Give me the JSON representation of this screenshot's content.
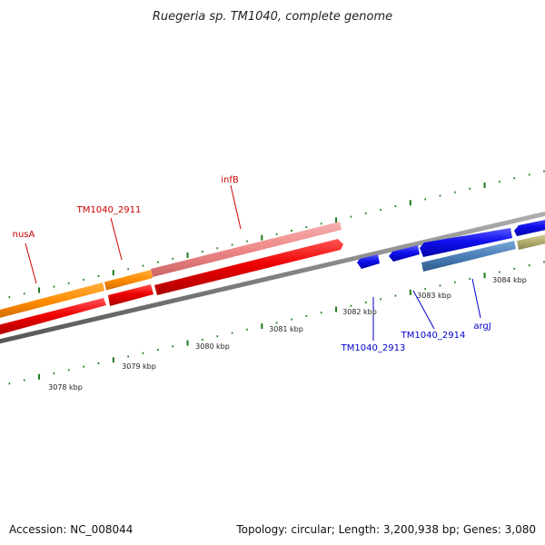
{
  "title": "Ruegeria sp. TM1040, complete genome",
  "footer": {
    "accession": "Accession: NC_008044",
    "summary": "Topology: circular; Length: 3,200,938 bp; Genes: 3,080"
  },
  "colors": {
    "forward_label": "#cc0000",
    "reverse_label": "#0000cc",
    "backbone": "#808080",
    "tick": "#1a7a1a",
    "gene_red": "#ee0000",
    "gene_pink": "#ee8888",
    "gene_orange": "#ff8c00",
    "gene_blue": "#1010ee",
    "gene_steelblue": "#4a7fb8",
    "gene_khaki": "#b8b070"
  },
  "icons": {
    "forward_gene_shape": "arrow-right-icon",
    "reverse_gene_shape": "arrow-left-icon"
  },
  "scale": {
    "unit": "kbp",
    "tick_labels": [
      "3078 kbp",
      "3079 kbp",
      "3080 kbp",
      "3081 kbp",
      "3082 kbp",
      "3083 kbp",
      "3084 kbp"
    ]
  },
  "gene_labels": {
    "nusA": "nusA",
    "tm2911": "TM1040_2911",
    "infB": "infB",
    "tm2913": "TM1040_2913",
    "tm2914": "TM1040_2914",
    "argJ": "argJ"
  }
}
